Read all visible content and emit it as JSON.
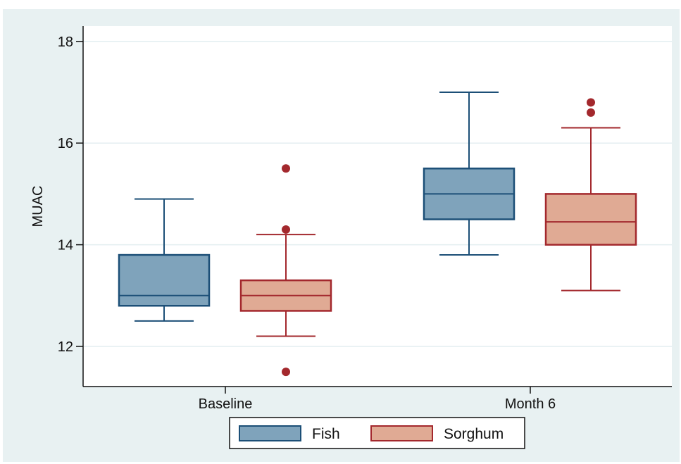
{
  "chart_data": {
    "type": "box",
    "ylabel": "MUAC",
    "xlabel": "",
    "categories": [
      "Baseline",
      "Month 6"
    ],
    "ylim": [
      11.5,
      18.4
    ],
    "yticks": [
      12,
      14,
      16,
      18
    ],
    "grid": true,
    "legend": "bottom",
    "series": [
      {
        "name": "Fish",
        "color_fill": "#7fa3bb",
        "color_line": "#1c4f77",
        "boxes": [
          {
            "category": "Baseline",
            "whisker_low": 12.5,
            "q1": 12.8,
            "median": 13.0,
            "q3": 13.8,
            "whisker_high": 14.9,
            "outliers": []
          },
          {
            "category": "Month 6",
            "whisker_low": 13.8,
            "q1": 14.5,
            "median": 15.0,
            "q3": 15.5,
            "whisker_high": 17.0,
            "outliers": []
          }
        ]
      },
      {
        "name": "Sorghum",
        "color_fill": "#e0aa94",
        "color_line": "#a3282d",
        "boxes": [
          {
            "category": "Baseline",
            "whisker_low": 12.2,
            "q1": 12.7,
            "median": 13.0,
            "q3": 13.3,
            "whisker_high": 14.2,
            "outliers": [
              11.5,
              14.3,
              15.5
            ]
          },
          {
            "category": "Month 6",
            "whisker_low": 13.1,
            "q1": 14.0,
            "median": 14.45,
            "q3": 15.0,
            "whisker_high": 16.3,
            "outliers": [
              16.6,
              16.8
            ]
          }
        ]
      }
    ]
  },
  "colors": {
    "outer_background": "#e8f1f2",
    "plot_background": "#ffffff",
    "grid": "#e3eef0",
    "axis": "#111111",
    "outlier": "#a3282d"
  }
}
